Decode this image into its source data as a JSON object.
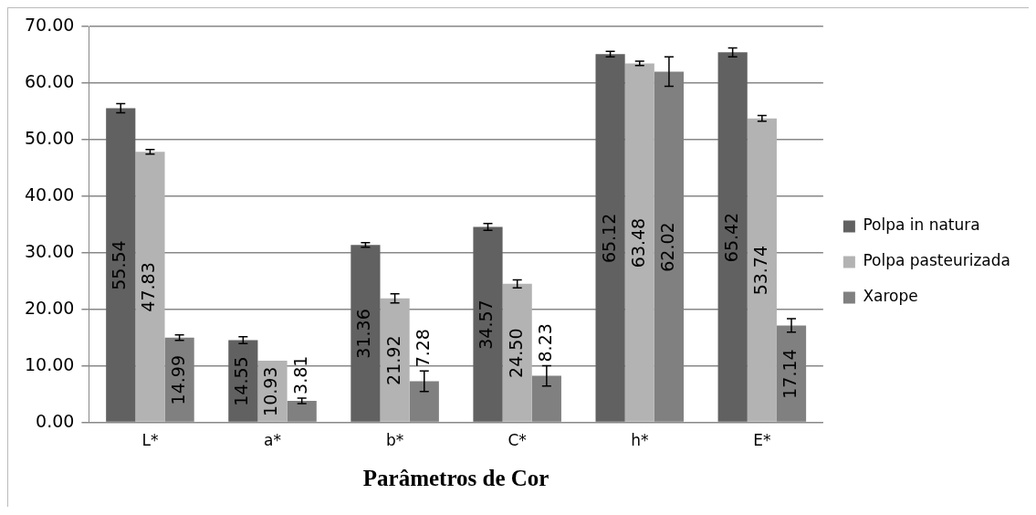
{
  "chart_data": {
    "type": "bar",
    "xlabel": "Parâmetros de Cor",
    "categories": [
      "L*",
      "a*",
      "b*",
      "C*",
      "h*",
      "E*"
    ],
    "series": [
      {
        "name": "Polpa in natura",
        "color": "#616161",
        "values": [
          55.54,
          14.55,
          31.36,
          34.57,
          65.12,
          65.42
        ],
        "value_labels": [
          "55.54",
          "14.55",
          "31.36",
          "34.57",
          "65.12",
          "65.42"
        ],
        "errors": [
          0.8,
          0.6,
          0.4,
          0.6,
          0.5,
          0.8
        ]
      },
      {
        "name": "Polpa pasteurizada",
        "color": "#b3b3b3",
        "values": [
          47.83,
          10.93,
          21.92,
          24.5,
          63.48,
          53.74
        ],
        "value_labels": [
          "47.83",
          "10.93",
          "21.92",
          "24.50",
          "63.48",
          "53.74"
        ],
        "errors": [
          0.4,
          null,
          0.8,
          0.7,
          0.4,
          0.5
        ]
      },
      {
        "name": "Xarope",
        "color": "#808080",
        "values": [
          14.99,
          3.81,
          7.28,
          8.23,
          62.02,
          17.14
        ],
        "value_labels": [
          "14.99",
          "3.81",
          "7.28",
          "8.23",
          "62.02",
          "17.14"
        ],
        "errors": [
          0.5,
          0.5,
          1.8,
          1.8,
          2.6,
          1.2
        ]
      }
    ],
    "ylim": [
      0,
      70
    ],
    "yticks": [
      {
        "value": 0,
        "label": "0.00"
      },
      {
        "value": 10,
        "label": "10.00"
      },
      {
        "value": 20,
        "label": "20.00"
      },
      {
        "value": 30,
        "label": "30.00"
      },
      {
        "value": 40,
        "label": "40.00"
      },
      {
        "value": 50,
        "label": "50.00"
      },
      {
        "value": 60,
        "label": "60.00"
      },
      {
        "value": 70,
        "label": "70.00"
      }
    ],
    "grid": "y",
    "legend": "right"
  }
}
